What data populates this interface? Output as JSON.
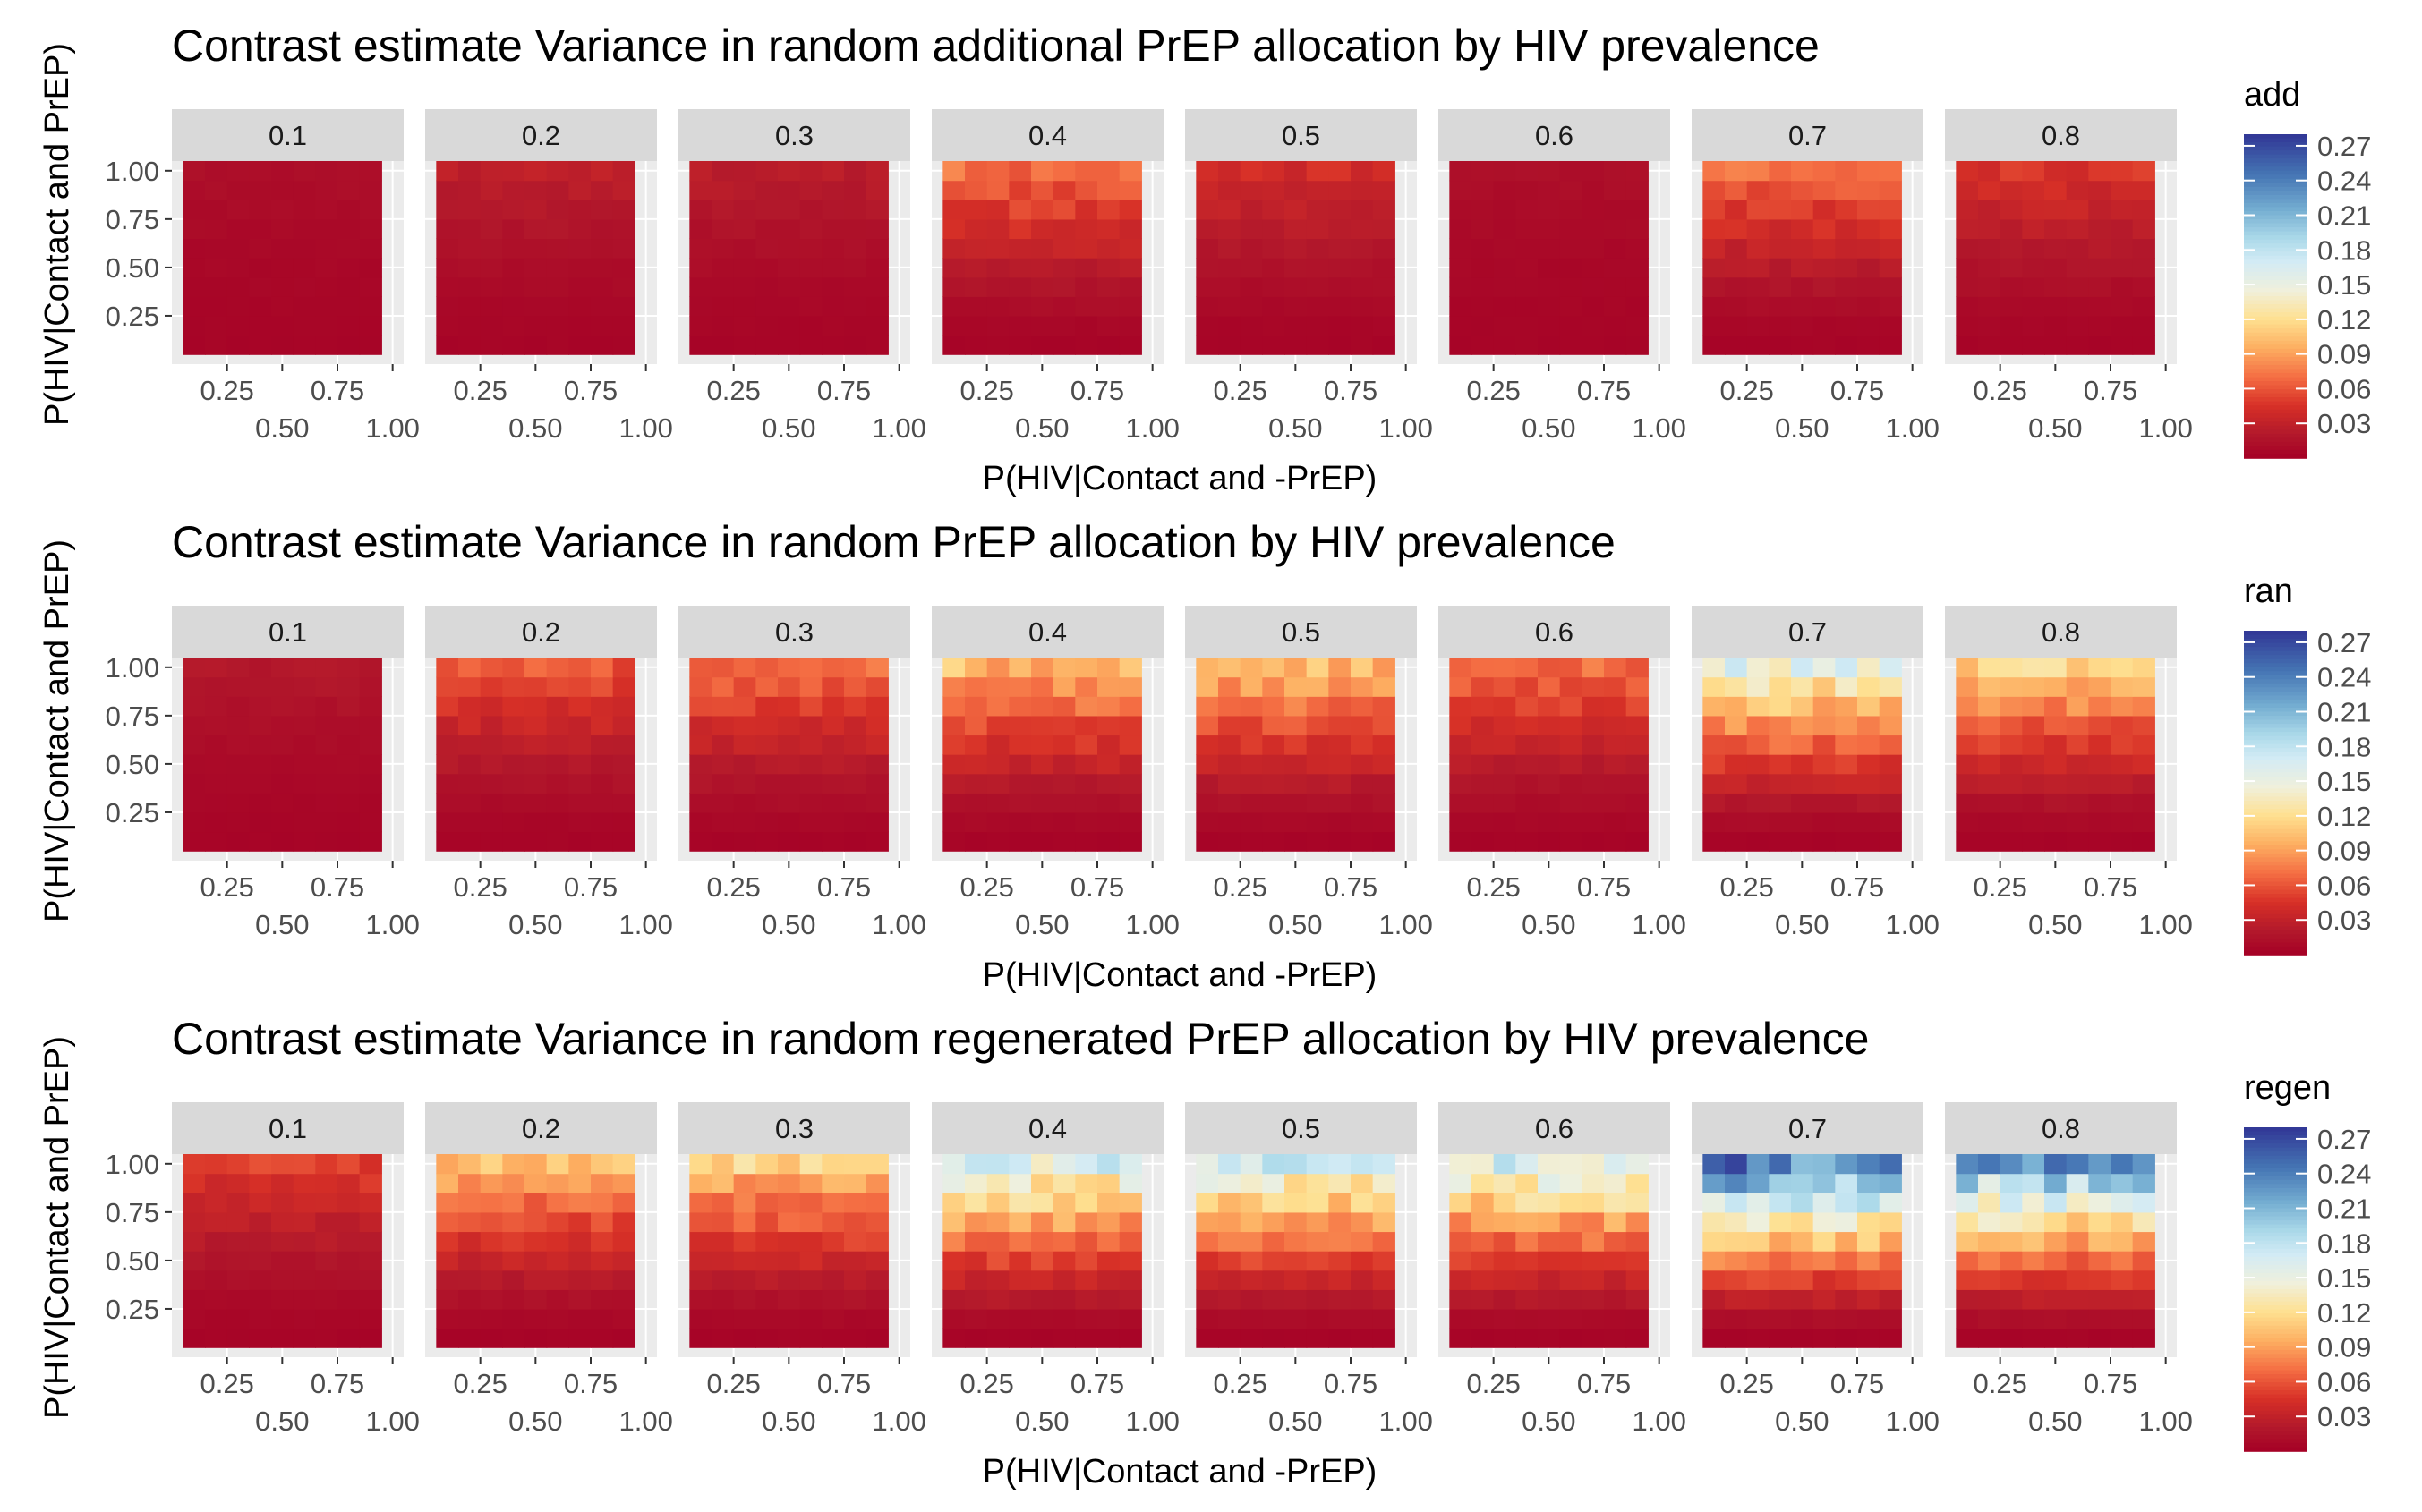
{
  "figure": {
    "x_axis_label": "P(HIV|Contact and -PrEP)",
    "y_axis_label": "P(HIV|Contact and PrEP)",
    "facet_labels": [
      "0.1",
      "0.2",
      "0.3",
      "0.4",
      "0.5",
      "0.6",
      "0.7",
      "0.8"
    ],
    "x_tick_labels": [
      "0.25",
      "0.50",
      "0.75",
      "1.00"
    ],
    "y_tick_labels": [
      "0.25",
      "0.50",
      "0.75",
      "1.00"
    ],
    "legend_tick_labels": [
      "0.03",
      "0.06",
      "0.09",
      "0.12",
      "0.15",
      "0.18",
      "0.21",
      "0.24",
      "0.27"
    ],
    "colors": {
      "panel_background": "#ebebeb",
      "strip_background": "#d9d9d9",
      "grid_line": "#ffffff",
      "scale_low": "#b2182b",
      "scale_high": "#313695"
    }
  },
  "chart_data": [
    {
      "type": "heatmap",
      "title": "Contrast estimate Variance in random additional PrEP allocation by HIV prevalence",
      "legend_title": "add",
      "facets": [
        "0.1",
        "0.2",
        "0.3",
        "0.4",
        "0.5",
        "0.6",
        "0.7",
        "0.8"
      ],
      "x": [
        0.1,
        0.2,
        0.3,
        0.4,
        0.5,
        0.6,
        0.7,
        0.8,
        0.9
      ],
      "y": [
        0.1,
        0.2,
        0.3,
        0.4,
        0.5,
        0.6,
        0.7,
        0.8,
        0.9,
        1.0
      ],
      "xlabel": "P(HIV|Contact and -PrEP)",
      "ylabel": "P(HIV|Contact and PrEP)",
      "xlim": [
        0.0,
        1.05
      ],
      "ylim": [
        0.0,
        1.05
      ],
      "x_ticks": [
        0.25,
        0.5,
        0.75,
        1.0
      ],
      "y_ticks": [
        0.25,
        0.5,
        0.75,
        1.0
      ],
      "color_range": [
        0.0,
        0.28
      ],
      "color_ticks": [
        0.03,
        0.06,
        0.09,
        0.12,
        0.15,
        0.18,
        0.21,
        0.24,
        0.27
      ],
      "top_values_by_facet": [
        0.012,
        0.028,
        0.025,
        0.07,
        0.04,
        0.012,
        0.07,
        0.045
      ]
    },
    {
      "type": "heatmap",
      "title": "Contrast estimate Variance in random PrEP allocation by HIV prevalence",
      "legend_title": "ran",
      "facets": [
        "0.1",
        "0.2",
        "0.3",
        "0.4",
        "0.5",
        "0.6",
        "0.7",
        "0.8"
      ],
      "x": [
        0.1,
        0.2,
        0.3,
        0.4,
        0.5,
        0.6,
        0.7,
        0.8,
        0.9
      ],
      "y": [
        0.1,
        0.2,
        0.3,
        0.4,
        0.5,
        0.6,
        0.7,
        0.8,
        0.9,
        1.0
      ],
      "xlabel": "P(HIV|Contact and -PrEP)",
      "ylabel": "P(HIV|Contact and PrEP)",
      "xlim": [
        0.0,
        1.05
      ],
      "ylim": [
        0.0,
        1.05
      ],
      "x_ticks": [
        0.25,
        0.5,
        0.75,
        1.0
      ],
      "y_ticks": [
        0.25,
        0.5,
        0.75,
        1.0
      ],
      "color_range": [
        0.0,
        0.28
      ],
      "color_ticks": [
        0.03,
        0.06,
        0.09,
        0.12,
        0.15,
        0.18,
        0.21,
        0.24,
        0.27
      ],
      "top_values_by_facet": [
        0.02,
        0.06,
        0.07,
        0.1,
        0.1,
        0.07,
        0.15,
        0.11
      ]
    },
    {
      "type": "heatmap",
      "title": "Contrast estimate Variance in random regenerated PrEP allocation by HIV prevalence",
      "legend_title": "regen",
      "facets": [
        "0.1",
        "0.2",
        "0.3",
        "0.4",
        "0.5",
        "0.6",
        "0.7",
        "0.8"
      ],
      "x": [
        0.1,
        0.2,
        0.3,
        0.4,
        0.5,
        0.6,
        0.7,
        0.8,
        0.9
      ],
      "y": [
        0.1,
        0.2,
        0.3,
        0.4,
        0.5,
        0.6,
        0.7,
        0.8,
        0.9,
        1.0
      ],
      "xlabel": "P(HIV|Contact and -PrEP)",
      "ylabel": "P(HIV|Contact and PrEP)",
      "xlim": [
        0.0,
        1.05
      ],
      "ylim": [
        0.0,
        1.05
      ],
      "x_ticks": [
        0.25,
        0.5,
        0.75,
        1.0
      ],
      "y_ticks": [
        0.25,
        0.5,
        0.75,
        1.0
      ],
      "color_range": [
        0.0,
        0.28
      ],
      "color_ticks": [
        0.03,
        0.06,
        0.09,
        0.12,
        0.15,
        0.18,
        0.21,
        0.24,
        0.27
      ],
      "top_values_by_facet": [
        0.05,
        0.1,
        0.11,
        0.16,
        0.16,
        0.16,
        0.24,
        0.22
      ]
    }
  ]
}
